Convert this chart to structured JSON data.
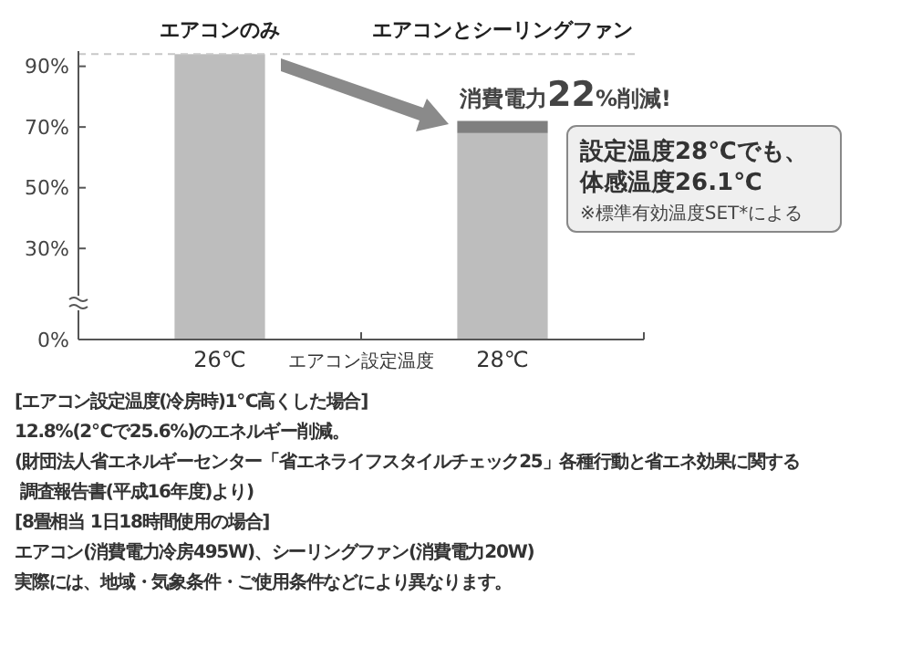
{
  "chart_data": {
    "type": "bar",
    "stacked": true,
    "categories": [
      "26℃",
      "28℃"
    ],
    "xlabel": "エアコン設定温度",
    "series": [
      {
        "color": "#bdbdbd",
        "values": [
          94,
          68
        ]
      },
      {
        "color": "#7f7f7f",
        "values": [
          null,
          4
        ]
      }
    ],
    "ylim": [
      0,
      95
    ],
    "yticks": [
      {
        "value": 0,
        "label": "0%"
      },
      {
        "value": 30,
        "label": "30%"
      },
      {
        "value": 50,
        "label": "50%"
      },
      {
        "value": 70,
        "label": "70%"
      },
      {
        "value": 90,
        "label": "90%"
      }
    ],
    "ref_lines": [
      {
        "axis": "y",
        "value": 94,
        "color": "#c8c8c8",
        "line_style": "dashed"
      }
    ],
    "annotations": [
      "エアコンのみ",
      "エアコンとシーリングファン",
      "消費電力22%削減!",
      "設定温度28℃でも、",
      "体感温度26.1℃",
      "※標準有効温度SET*による",
      "[エアコン設定温度(冷房時)1℃高くした場合]",
      "12.8%(2℃で25.6%)のエネルギー削減。",
      "(財団法人省エネルギーセンター「省エネライフスタイルチェック25」各種行動と省エネ効果に関する",
      " 調査報告書(平成16年度)より)",
      "[8畳相当 1日18時間使用の場合]",
      "エアコン(消費電力冷房495W)、シーリングファン(消費電力20W)",
      "実際には、地域・気象条件・ご使用条件などにより異なります。"
    ]
  }
}
